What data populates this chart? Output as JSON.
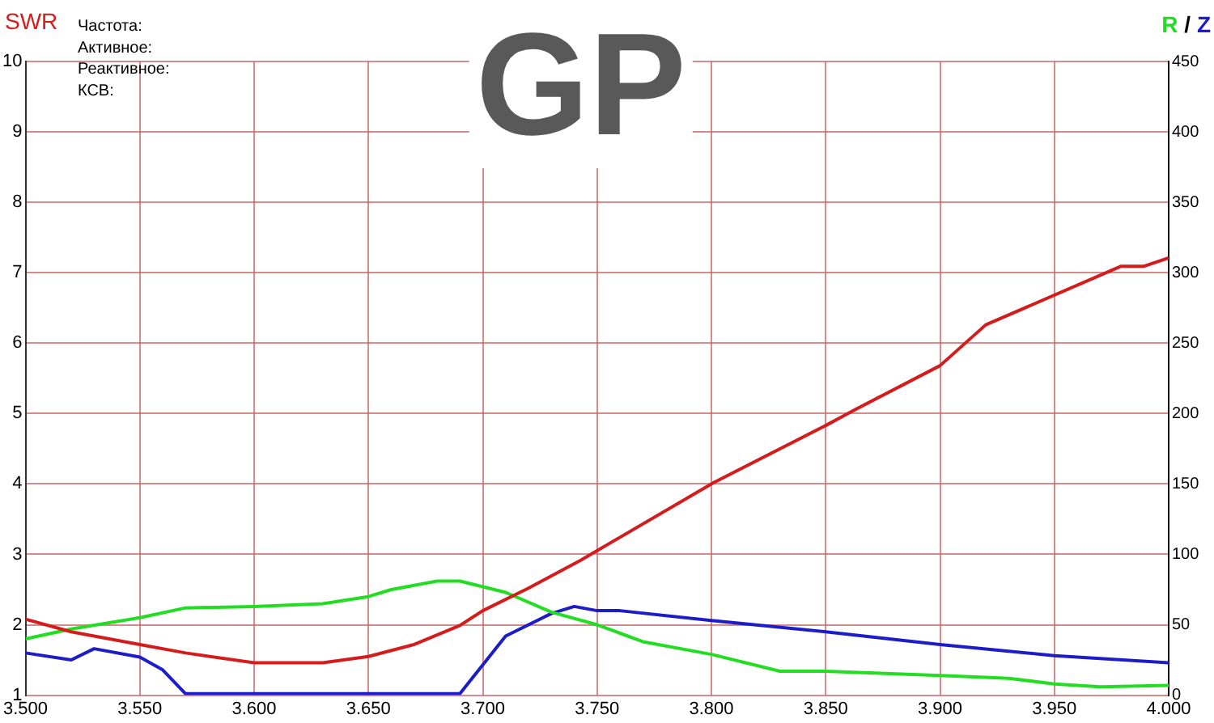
{
  "chart_data": {
    "type": "line",
    "title": "GP",
    "ylabel": "SWR",
    "y2label": "R / Z",
    "annotations": [
      "Частота:",
      "Активное:",
      "Реактивное:",
      "КСВ:"
    ],
    "xlim": [
      3.5,
      4.0
    ],
    "xticks": [
      {
        "value": 3.5,
        "label": "3.500"
      },
      {
        "value": 3.55,
        "label": "3.550"
      },
      {
        "value": 3.6,
        "label": "3.600"
      },
      {
        "value": 3.65,
        "label": "3.650"
      },
      {
        "value": 3.7,
        "label": "3.700"
      },
      {
        "value": 3.75,
        "label": "3.750"
      },
      {
        "value": 3.8,
        "label": "3.800"
      },
      {
        "value": 3.85,
        "label": "3.850"
      },
      {
        "value": 3.9,
        "label": "3.900"
      },
      {
        "value": 3.95,
        "label": "3.950"
      },
      {
        "value": 4.0,
        "label": "4.000"
      }
    ],
    "ylim": [
      1,
      10
    ],
    "yticks": [
      1,
      2,
      3,
      4,
      5,
      6,
      7,
      8,
      9,
      10
    ],
    "y2lim": [
      0,
      450
    ],
    "y2ticks": [
      0,
      50,
      100,
      150,
      200,
      250,
      300,
      350,
      400,
      450
    ],
    "grid": true,
    "marker": "none",
    "line_style": "solid",
    "series": [
      {
        "color": "#d41c1c",
        "x": [
          3.5,
          3.52,
          3.55,
          3.57,
          3.6,
          3.63,
          3.65,
          3.67,
          3.69,
          3.7,
          3.72,
          3.743,
          3.801,
          3.85,
          3.862,
          3.9,
          3.92,
          3.979,
          3.989,
          4.0
        ],
        "values": [
          2.08,
          1.9,
          1.72,
          1.6,
          1.46,
          1.46,
          1.55,
          1.72,
          1.99,
          2.2,
          2.52,
          2.92,
          4.02,
          4.83,
          5.04,
          5.68,
          6.26,
          7.09,
          7.09,
          7.21
        ]
      },
      {
        "color": "#22dd22",
        "axis": "y2",
        "x": [
          3.5,
          3.52,
          3.55,
          3.57,
          3.6,
          3.63,
          3.65,
          3.66,
          3.68,
          3.69,
          3.7,
          3.71,
          3.73,
          3.75,
          3.77,
          3.8,
          3.83,
          3.85,
          3.9,
          3.93,
          3.95,
          3.97,
          4.0
        ],
        "values": [
          40,
          47,
          55,
          62,
          63,
          65,
          70,
          75,
          81,
          81,
          77,
          73,
          59,
          50,
          38,
          29,
          17,
          17,
          14,
          12,
          8,
          6,
          7
        ]
      },
      {
        "color": "#1c1cc8",
        "axis": "y2",
        "x": [
          3.5,
          3.52,
          3.53,
          3.55,
          3.56,
          3.57,
          3.69,
          3.71,
          3.73,
          3.74,
          3.75,
          3.76,
          3.8,
          3.85,
          3.9,
          3.95,
          4.0
        ],
        "values": [
          30,
          25,
          33,
          27,
          18,
          1,
          1,
          42,
          58,
          63,
          60,
          60,
          53,
          45,
          36,
          28,
          23
        ]
      }
    ]
  }
}
